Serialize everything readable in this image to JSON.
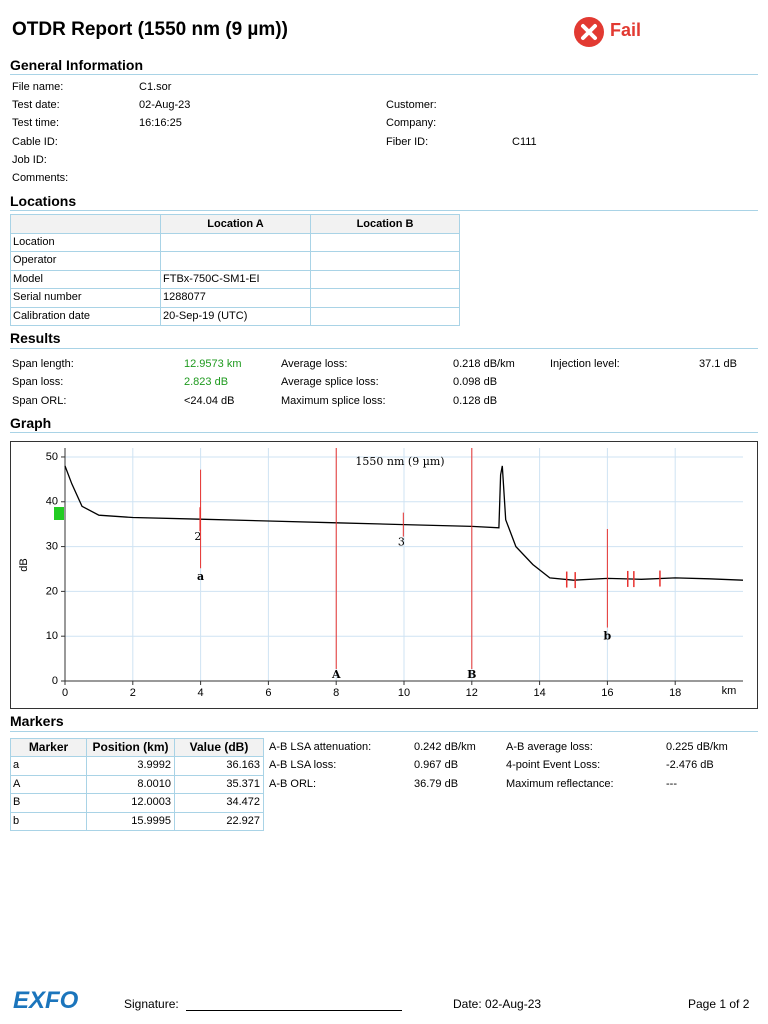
{
  "header": {
    "title": "OTDR Report (1550 nm (9 µm))",
    "status": "Fail"
  },
  "general": {
    "heading": "General Information",
    "left": [
      {
        "label": "File name:",
        "value": "C1.sor"
      },
      {
        "label": "Test date:",
        "value": "02-Aug-23"
      },
      {
        "label": "Test time:",
        "value": "16:16:25"
      },
      {
        "label": "Cable ID:"
      },
      {
        "label": "Job ID:"
      },
      {
        "label": "Comments:"
      }
    ],
    "right": [
      {
        "label": "Customer:"
      },
      {
        "label": "Company:"
      },
      {
        "label": "Fiber ID:",
        "value": "C111"
      }
    ]
  },
  "locations": {
    "heading": "Locations",
    "columns": [
      "Location A",
      "Location B"
    ],
    "rows": [
      {
        "label": "Location"
      },
      {
        "label": "Operator"
      },
      {
        "label": "Model",
        "a": "FTBx-750C-SM1-EI"
      },
      {
        "label": "Serial number",
        "a": "1288077"
      },
      {
        "label": "Calibration date",
        "a": "20-Sep-19 (UTC)"
      }
    ]
  },
  "results": {
    "heading": "Results",
    "columns": [
      [
        {
          "label": "Span length:",
          "value": "12.9573 km",
          "color": "#1e9a1e"
        },
        {
          "label": "Span loss:",
          "value": "2.823 dB",
          "color": "#1e9a1e"
        },
        {
          "label": "Span ORL:",
          "value": "<24.04 dB"
        }
      ],
      [
        {
          "label": "Average loss:",
          "value": "0.218 dB/km"
        },
        {
          "label": "Average splice loss:",
          "value": "0.098 dB"
        },
        {
          "label": "Maximum splice loss:",
          "value": "0.128 dB"
        }
      ],
      [
        {
          "label": "Injection level:",
          "value": "37.1 dB"
        }
      ]
    ]
  },
  "graph": {
    "heading": "Graph"
  },
  "chart_data": {
    "type": "line",
    "title": "1550 nm (9 µm)",
    "y_label": "dB",
    "x_unit": "km",
    "xlim": [
      0,
      20
    ],
    "ylim": [
      0,
      52
    ],
    "xticks": [
      0,
      2,
      4,
      6,
      8,
      10,
      12,
      14,
      16,
      18
    ],
    "yticks": [
      0,
      10,
      20,
      30,
      40,
      50
    ],
    "grid": true,
    "marker_color": "#e8322f",
    "series": [
      {
        "color": "#000000",
        "x": [
          0,
          0.2,
          0.5,
          1,
          2,
          4,
          6,
          8,
          10,
          12,
          12.8,
          12.85,
          12.9,
          13,
          13.3,
          13.8,
          14.3,
          15,
          16,
          17,
          18,
          19,
          20
        ],
        "values": [
          48,
          44,
          39,
          37,
          36.5,
          36.1,
          35.7,
          35.3,
          34.9,
          34.5,
          34.2,
          46,
          48,
          36,
          30,
          26,
          23,
          22.5,
          22.9,
          22.7,
          23,
          22.8,
          22.5
        ]
      }
    ],
    "events": [
      {
        "label": "2",
        "x": 3.98,
        "value": 36.1
      },
      {
        "label": "3",
        "x": 9.98,
        "value": 34.9
      }
    ],
    "event_ticks": [
      14.8,
      15.05,
      16.6,
      16.78,
      17.55
    ]
  },
  "markers": {
    "heading": "Markers",
    "columns": [
      "Marker",
      "Position (km)",
      "Value (dB)"
    ],
    "rows": [
      [
        "a",
        "3.9992",
        "36.163"
      ],
      [
        "A",
        "8.0010",
        "35.371"
      ],
      [
        "B",
        "12.0003",
        "34.472"
      ],
      [
        "b",
        "15.9995",
        "22.927"
      ]
    ],
    "stats": [
      [
        {
          "label": "A-B LSA attenuation:",
          "value": "0.242 dB/km"
        },
        {
          "label": "A-B LSA loss:",
          "value": "0.967 dB"
        },
        {
          "label": "A-B ORL:",
          "value": "36.79 dB"
        }
      ],
      [
        {
          "label": "A-B average loss:",
          "value": "0.225 dB/km"
        },
        {
          "label": "4-point Event Loss:",
          "value": "-2.476 dB"
        },
        {
          "label": "Maximum reflectance:",
          "value": "---"
        }
      ]
    ]
  },
  "footer": {
    "logo": "EXFO",
    "signature": "Signature:",
    "date": "Date: 02-Aug-23",
    "page": "Page 1 of 2"
  }
}
